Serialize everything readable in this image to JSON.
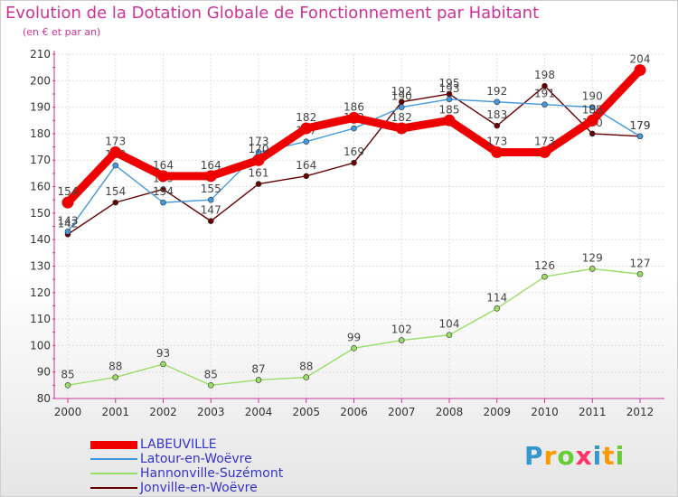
{
  "header": {
    "title": "Evolution de la Dotation Globale de Fonctionnement par Habitant",
    "subtitle": "(en € et par an)"
  },
  "brand": {
    "text": "Proxiti",
    "colors": [
      "#3399cc",
      "#ff9900",
      "#66cc33",
      "#ff3366",
      "#3399cc",
      "#ff9900",
      "#66cc33"
    ]
  },
  "chart_data": {
    "type": "line",
    "title": "Evolution de la Dotation Globale de Fonctionnement par Habitant",
    "subtitle": "(en € et par an)",
    "x": [
      2000,
      2001,
      2002,
      2003,
      2004,
      2005,
      2006,
      2007,
      2008,
      2009,
      2010,
      2011,
      2012
    ],
    "ylim": [
      80,
      210
    ],
    "yticks": [
      80,
      90,
      100,
      110,
      120,
      130,
      140,
      150,
      160,
      170,
      180,
      190,
      200,
      210
    ],
    "grid": true,
    "legend_position": "bottom-left",
    "series": [
      {
        "name": "Jonville-en-Woëvre",
        "color": "#660000",
        "emphasis": false,
        "values": [
          142,
          154,
          159,
          147,
          161,
          164,
          169,
          192,
          195,
          183,
          198,
          180,
          179
        ]
      },
      {
        "name": "Latour-en-Woëvre",
        "color": "#4499dd",
        "emphasis": false,
        "values": [
          143,
          168,
          154,
          155,
          173,
          177,
          182,
          190,
          193,
          192,
          191,
          190,
          179
        ]
      },
      {
        "name": "Hannonville-Suzémont",
        "color": "#99dd66",
        "emphasis": false,
        "values": [
          85,
          88,
          93,
          85,
          87,
          88,
          99,
          102,
          104,
          114,
          126,
          129,
          127
        ]
      },
      {
        "name": "LABEUVILLE",
        "color": "#ee0000",
        "emphasis": true,
        "values": [
          154,
          173,
          164,
          164,
          170,
          182,
          186,
          182,
          185,
          173,
          173,
          185,
          204
        ]
      }
    ],
    "legend_order": [
      "LABEUVILLE",
      "Latour-en-Woëvre",
      "Hannonville-Suzémont",
      "Jonville-en-Woëvre"
    ]
  }
}
